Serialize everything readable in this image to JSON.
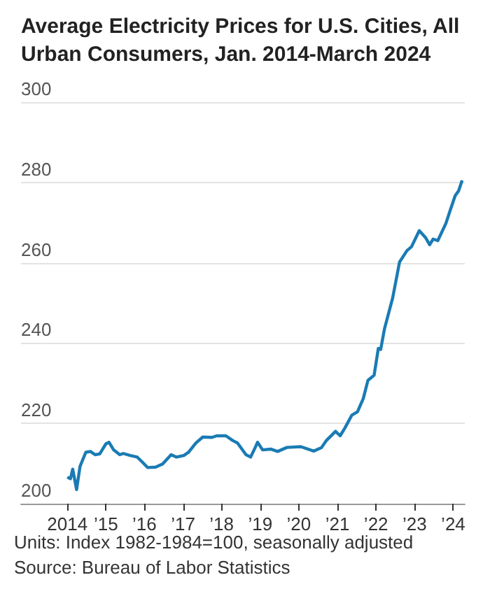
{
  "chart_data": {
    "type": "line",
    "title": "Average Electricity Prices for U.S. Cities, All Urban Consumers, Jan. 2014-March 2024",
    "x": [
      2014.0,
      2014.08,
      2014.14,
      2014.24,
      2014.33,
      2014.48,
      2014.6,
      2014.72,
      2014.84,
      2015.0,
      2015.08,
      2015.2,
      2015.36,
      2015.45,
      2015.63,
      2015.81,
      2015.93,
      2016.08,
      2016.29,
      2016.47,
      2016.69,
      2016.83,
      2017.02,
      2017.14,
      2017.33,
      2017.51,
      2017.75,
      2017.87,
      2018.11,
      2018.29,
      2018.41,
      2018.63,
      2018.75,
      2018.87,
      2018.93,
      2019.06,
      2019.27,
      2019.45,
      2019.69,
      2020.05,
      2020.39,
      2020.59,
      2020.71,
      2020.95,
      2021.07,
      2021.19,
      2021.37,
      2021.52,
      2021.67,
      2021.79,
      2021.95,
      2022.06,
      2022.12,
      2022.22,
      2022.43,
      2022.61,
      2022.8,
      2022.92,
      2023.12,
      2023.28,
      2023.39,
      2023.48,
      2023.6,
      2023.81,
      2023.93,
      2024.05,
      2024.14,
      2024.23
    ],
    "series": [
      {
        "color": "#1a7bb4",
        "values": [
          206.6,
          206.2,
          208.6,
          203.5,
          209.3,
          212.8,
          213,
          212.2,
          212.4,
          214.9,
          215.3,
          213.4,
          212.2,
          212.5,
          212,
          211.6,
          210.5,
          209,
          209.1,
          209.9,
          212.2,
          211.6,
          212,
          212.8,
          215.1,
          216.6,
          216.5,
          216.9,
          216.9,
          215.7,
          215.1,
          212.2,
          211.6,
          214,
          215.3,
          213.4,
          213.6,
          213,
          214,
          214.2,
          213.1,
          214,
          215.7,
          218,
          216.9,
          218.8,
          222,
          222.9,
          226.2,
          230.7,
          232,
          238.7,
          238.4,
          243.6,
          251.2,
          260.2,
          263,
          264,
          268,
          266.3,
          264.5,
          265.9,
          265.5,
          269.8,
          273.3,
          276.7,
          277.9,
          280.5
        ]
      }
    ],
    "xlim": [
      2012.8,
      2024.3
    ],
    "xticks": [
      {
        "value": 2014,
        "label": "2014"
      },
      {
        "value": 2015,
        "label": "’15"
      },
      {
        "value": 2016,
        "label": "’16"
      },
      {
        "value": 2017,
        "label": "’17"
      },
      {
        "value": 2018,
        "label": "’18"
      },
      {
        "value": 2019,
        "label": "’19"
      },
      {
        "value": 2020,
        "label": "’20"
      },
      {
        "value": 2021,
        "label": "’21"
      },
      {
        "value": 2022,
        "label": "’22"
      },
      {
        "value": 2023,
        "label": "’23"
      },
      {
        "value": 2024,
        "label": "’24"
      }
    ],
    "ylim": [
      200,
      300
    ],
    "yticks": [
      200,
      220,
      240,
      260,
      280,
      300
    ],
    "grid": "y",
    "annotations": [
      "Units: Index 1982-1984=100, seasonally adjusted",
      "Source: Bureau of Labor Statistics"
    ]
  }
}
